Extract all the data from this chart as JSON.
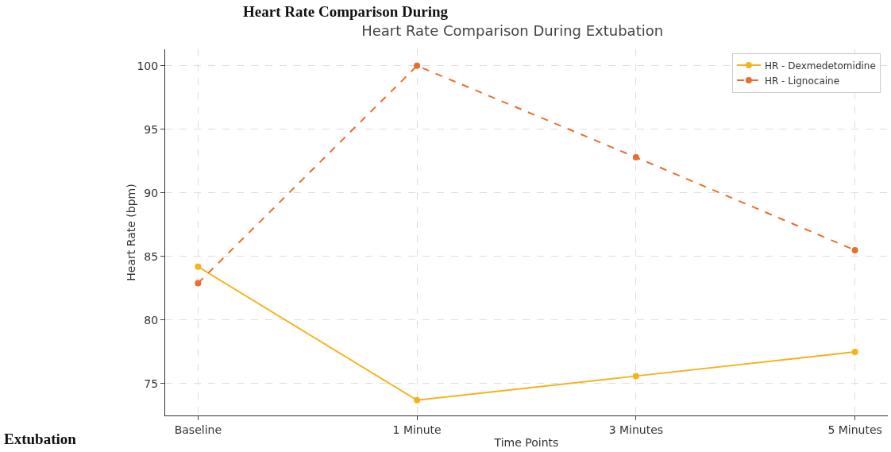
{
  "chart_data": {
    "type": "line",
    "title": "Heart Rate Comparison During Extubation",
    "xlabel": "Time Points",
    "ylabel": "Heart Rate (bpm)",
    "annotations": [
      "Heart Rate Comparison During",
      "Extubation"
    ],
    "categories": [
      "Baseline",
      "1 Minute",
      "3 Minutes",
      "5 Minutes"
    ],
    "series": [
      {
        "name": "HR - Dexmedetomidine",
        "color": "#f5b21c",
        "values": [
          84.2,
          73.7,
          75.6,
          77.5
        ],
        "line_style": "solid"
      },
      {
        "name": "HR - Lignocaine",
        "color": "#ec6c2c",
        "values": [
          82.9,
          100,
          92.8,
          85.5
        ],
        "line_style": "dashed"
      }
    ],
    "ylim": [
      72.5,
      101.3
    ],
    "yticks": [
      75,
      80,
      85,
      90,
      95,
      100
    ],
    "grid": true,
    "legend": "top right",
    "marker": "circle"
  }
}
